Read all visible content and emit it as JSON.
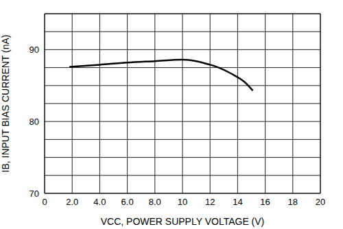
{
  "chart_data": {
    "type": "line",
    "x_label": "VCC, POWER SUPPLY VOLTAGE (V)",
    "y_label": "IB, INPUT BIAS CURRENT (nA)",
    "x": [
      1.8,
      4,
      6,
      8,
      10,
      11,
      12,
      12.5,
      13.5,
      14.5,
      15.1
    ],
    "values": [
      87.6,
      87.9,
      88.2,
      88.4,
      88.6,
      88.4,
      87.9,
      87.6,
      86.7,
      85.5,
      84.3
    ],
    "color": "#000000",
    "xlim": [
      0,
      20
    ],
    "xticks": [
      0,
      {
        "value": 2,
        "label": "2.0"
      },
      {
        "value": 4,
        "label": "4.0"
      },
      {
        "value": 6,
        "label": "6.0"
      },
      {
        "value": 8,
        "label": "8.0"
      },
      10,
      12,
      14,
      16,
      18,
      20
    ],
    "ylim": [
      70,
      95
    ],
    "yticks": [
      70,
      80,
      90
    ],
    "minor_yticks": [
      72.5,
      75,
      77.5,
      82.5,
      85,
      87.5,
      92.5,
      95
    ],
    "grid": true
  }
}
